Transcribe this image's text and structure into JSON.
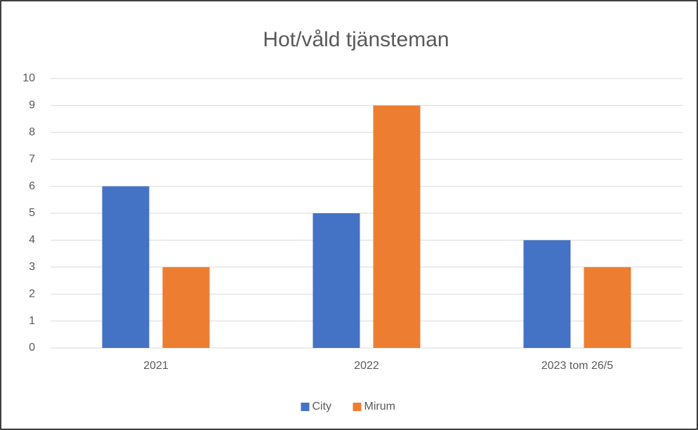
{
  "chart_data": {
    "type": "bar",
    "title": "Hot/våld tjänsteman",
    "categories": [
      "2021",
      "2022",
      "2023 tom 26/5"
    ],
    "series": [
      {
        "name": "City",
        "color": "#4472c4",
        "values": [
          6,
          5,
          4
        ]
      },
      {
        "name": "Mirum",
        "color": "#ed7d31",
        "values": [
          3,
          9,
          3
        ]
      }
    ],
    "ylim": [
      0,
      10
    ],
    "yticks": [
      0,
      1,
      2,
      3,
      4,
      5,
      6,
      7,
      8,
      9,
      10
    ],
    "grid": true,
    "legend": "bottom"
  }
}
